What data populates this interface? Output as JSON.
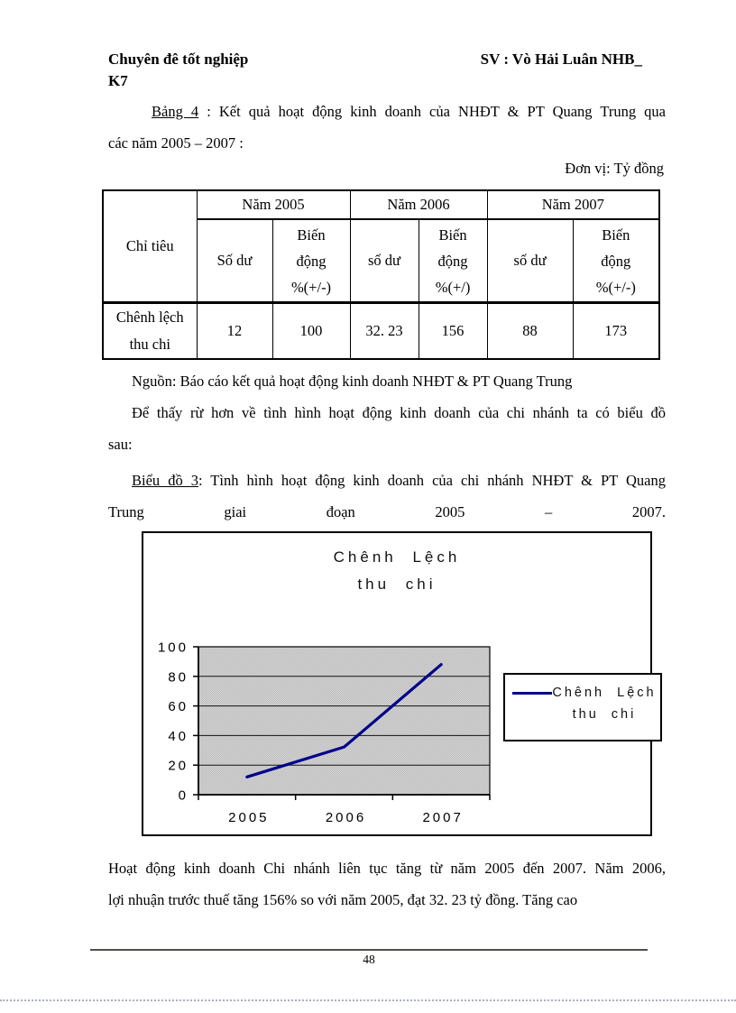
{
  "header": {
    "left": "Chuyên đê tốt nghiệp",
    "right": "SV : Vò Hải Luân NHB_",
    "line2": "K7"
  },
  "intro": {
    "label": "Bảng 4",
    "line1_rest": " : Kết quả hoạt động kinh doanh của NHĐT & PT Quang Trung qua",
    "line2": "các năm 2005 – 2007 :",
    "unit": "Đơn vị: Tỷ đồng"
  },
  "table": {
    "corner_header": "Chỉ tiêu",
    "year_headers": [
      "Năm 2005",
      "Năm 2006",
      "Năm 2007"
    ],
    "sub_headers": [
      {
        "balance": "Số dư",
        "change_lines": [
          "Biến",
          "động",
          "%(+/-)"
        ]
      },
      {
        "balance": "số dư",
        "change_lines": [
          "Biến",
          "động",
          "%(+/)"
        ]
      },
      {
        "balance": "số dư",
        "change_lines": [
          "Biến",
          "động",
          "%(+/-)"
        ]
      }
    ],
    "row": {
      "label_lines": [
        "Chênh lệch",
        "thu chi"
      ],
      "values": [
        "12",
        "100",
        "32. 23",
        "156",
        "88",
        "173"
      ]
    }
  },
  "source_note": "Nguồn: Báo cáo kết quả hoạt động kinh doanh NHĐT & PT Quang Trung",
  "para_intro_chart": {
    "line1": "Để thấy rừ hơn về tình hình hoạt động kinh doanh của chi nhánh ta có biểu đồ",
    "line2": "sau:"
  },
  "chart_caption": {
    "label": "Biểu đồ 3",
    "line1_rest": ": Tình hình hoạt động kinh doanh của chi nhánh NHĐT & PT Quang",
    "line2_words": [
      "Trung",
      "giai",
      "đoạn",
      "2005",
      "–",
      "2007."
    ]
  },
  "chart_data": {
    "type": "line",
    "title_lines": [
      "Chênh Lệch",
      "thu chi"
    ],
    "categories": [
      "2005",
      "2006",
      "2007"
    ],
    "series": [
      {
        "name": "Chênh Lệch thu chi",
        "values": [
          12,
          32.23,
          88
        ]
      }
    ],
    "ylim": [
      0,
      100
    ],
    "yticks": [
      0,
      20,
      40,
      60,
      80,
      100
    ],
    "grid": true,
    "legend_position": "right",
    "legend_lines": [
      "Chênh Lệch",
      "thu chi"
    ],
    "line_color": "#00008b",
    "plot_bg": "#cccccc"
  },
  "closing_para": {
    "line1": "Hoạt động kinh doanh Chi nhánh liên tục tăng từ năm 2005 đến 2007. Năm 2006,",
    "line2": "lợi nhuận trước thuế tăng 156% so với năm 2005, đạt 32. 23 tỷ đồng. Tăng cao"
  },
  "footer": {
    "page_number": "48"
  }
}
